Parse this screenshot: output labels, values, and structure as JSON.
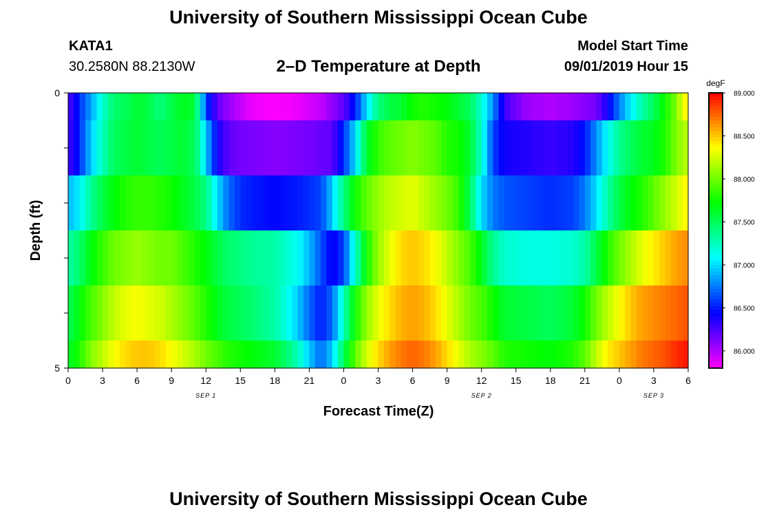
{
  "header": {
    "title": "University of Southern Mississippi Ocean Cube",
    "station_id": "KATA1",
    "station_coords": "30.2580N 88.2130W",
    "chart_title": "2–D Temperature at Depth",
    "model_label": "Model Start Time",
    "model_time": "09/01/2019 Hour 15"
  },
  "footer": {
    "title": "University of Southern Mississippi Ocean Cube"
  },
  "colors": {
    "background": "#ffffff",
    "text": "#000000",
    "scale_low": "#ff00ff",
    "scale_high": "#ff0000"
  },
  "chart_data": {
    "type": "heatmap",
    "title": "2–D Temperature at Depth",
    "xlabel": "Forecast Time(Z)",
    "ylabel": "Depth (ft)",
    "units": "degF",
    "x_range_hours": [
      0,
      54
    ],
    "x_tick_hours": [
      0,
      3,
      6,
      9,
      12,
      15,
      18,
      21,
      24,
      27,
      30,
      33,
      36,
      39,
      42,
      45,
      48,
      51,
      54
    ],
    "x_tick_labels": [
      "0",
      "3",
      "6",
      "9",
      "12",
      "15",
      "18",
      "21",
      "0",
      "3",
      "6",
      "9",
      "12",
      "15",
      "18",
      "21",
      "0",
      "3",
      "6"
    ],
    "date_labels": [
      {
        "hour": 12,
        "text": "SEP 1"
      },
      {
        "hour": 36,
        "text": "SEP 2"
      },
      {
        "hour": 51,
        "text": "SEP 3"
      }
    ],
    "y_range_ft": [
      0,
      5
    ],
    "y_tick_values": [
      0,
      1,
      2,
      3,
      4,
      5
    ],
    "y_tick_labels": [
      "0",
      "",
      "",
      "",
      "",
      "5"
    ],
    "colorbar": {
      "min": 85.8,
      "max": 89.0,
      "tick_values": [
        86.0,
        86.5,
        87.0,
        87.5,
        88.0,
        88.5,
        89.0
      ],
      "tick_labels": [
        "86.000",
        "86.500",
        "87.000",
        "87.500",
        "88.000",
        "88.500",
        "89.000"
      ]
    },
    "depth_layers": [
      {
        "depth": 0,
        "points": [
          [
            0,
            86.25
          ],
          [
            0.5,
            86.35
          ],
          [
            1,
            86.55
          ],
          [
            2,
            86.85
          ],
          [
            3,
            87.2
          ],
          [
            4,
            87.45
          ],
          [
            5,
            87.5
          ],
          [
            6,
            87.6
          ],
          [
            7,
            87.55
          ],
          [
            8,
            87.4
          ],
          [
            9,
            87.55
          ],
          [
            10,
            87.65
          ],
          [
            11,
            87.6
          ],
          [
            11.5,
            87.15
          ],
          [
            12,
            86.6
          ],
          [
            13,
            86.2
          ],
          [
            14,
            86.05
          ],
          [
            15,
            85.95
          ],
          [
            16,
            85.85
          ],
          [
            18,
            85.8
          ],
          [
            20,
            85.85
          ],
          [
            22,
            85.95
          ],
          [
            24,
            86.2
          ],
          [
            25,
            86.5
          ],
          [
            26,
            87.0
          ],
          [
            27,
            87.4
          ],
          [
            28,
            87.55
          ],
          [
            29,
            87.6
          ],
          [
            30,
            87.75
          ],
          [
            31,
            87.8
          ],
          [
            32,
            87.75
          ],
          [
            33,
            87.7
          ],
          [
            34,
            87.6
          ],
          [
            35,
            87.5
          ],
          [
            36,
            87.2
          ],
          [
            37,
            86.8
          ],
          [
            38,
            86.3
          ],
          [
            39,
            86.15
          ],
          [
            40,
            86.05
          ],
          [
            42,
            86.0
          ],
          [
            44,
            86.05
          ],
          [
            46,
            86.15
          ],
          [
            47,
            86.4
          ],
          [
            48,
            86.75
          ],
          [
            49,
            87.05
          ],
          [
            50,
            87.3
          ],
          [
            51,
            87.5
          ],
          [
            52,
            87.75
          ],
          [
            53,
            88.05
          ],
          [
            53.5,
            88.3
          ],
          [
            54,
            88.4
          ]
        ]
      },
      {
        "depth": 1,
        "points": [
          [
            0,
            86.3
          ],
          [
            0.5,
            86.35
          ],
          [
            1,
            86.55
          ],
          [
            2,
            86.95
          ],
          [
            3,
            87.25
          ],
          [
            4,
            87.5
          ],
          [
            5,
            87.55
          ],
          [
            6,
            87.6
          ],
          [
            7,
            87.55
          ],
          [
            8,
            87.5
          ],
          [
            9,
            87.55
          ],
          [
            10,
            87.6
          ],
          [
            11,
            87.5
          ],
          [
            11.5,
            87.3
          ],
          [
            12,
            86.95
          ],
          [
            13,
            86.4
          ],
          [
            14,
            86.2
          ],
          [
            15,
            86.15
          ],
          [
            18,
            86.1
          ],
          [
            21,
            86.15
          ],
          [
            23,
            86.2
          ],
          [
            24,
            86.55
          ],
          [
            25,
            87.0
          ],
          [
            26,
            87.6
          ],
          [
            27,
            87.85
          ],
          [
            28,
            87.95
          ],
          [
            29,
            88.0
          ],
          [
            30,
            88.05
          ],
          [
            31,
            88.0
          ],
          [
            32,
            87.95
          ],
          [
            33,
            87.8
          ],
          [
            34,
            87.75
          ],
          [
            35,
            87.6
          ],
          [
            36,
            87.2
          ],
          [
            37,
            86.6
          ],
          [
            38,
            86.4
          ],
          [
            40,
            86.35
          ],
          [
            42,
            86.3
          ],
          [
            44,
            86.35
          ],
          [
            45,
            86.5
          ],
          [
            46,
            86.8
          ],
          [
            47,
            87.1
          ],
          [
            48,
            87.35
          ],
          [
            49,
            87.5
          ],
          [
            50,
            87.6
          ],
          [
            51,
            87.65
          ],
          [
            52,
            87.8
          ],
          [
            53,
            88.05
          ],
          [
            54,
            88.2
          ]
        ]
      },
      {
        "depth": 2,
        "points": [
          [
            0,
            86.9
          ],
          [
            1,
            87.05
          ],
          [
            2,
            87.35
          ],
          [
            3,
            87.55
          ],
          [
            4,
            87.7
          ],
          [
            5,
            87.8
          ],
          [
            6,
            87.85
          ],
          [
            7,
            87.85
          ],
          [
            8,
            87.8
          ],
          [
            9,
            87.75
          ],
          [
            10,
            87.65
          ],
          [
            11,
            87.55
          ],
          [
            12,
            87.4
          ],
          [
            13,
            87.0
          ],
          [
            14,
            86.7
          ],
          [
            15,
            86.55
          ],
          [
            16,
            86.5
          ],
          [
            18,
            86.45
          ],
          [
            20,
            86.5
          ],
          [
            21,
            86.55
          ],
          [
            22,
            86.6
          ],
          [
            23,
            86.95
          ],
          [
            24,
            87.4
          ],
          [
            25,
            87.75
          ],
          [
            26,
            87.95
          ],
          [
            27,
            88.1
          ],
          [
            28,
            88.2
          ],
          [
            29,
            88.25
          ],
          [
            30,
            88.3
          ],
          [
            31,
            88.2
          ],
          [
            32,
            88.1
          ],
          [
            33,
            88.0
          ],
          [
            34,
            87.85
          ],
          [
            35,
            87.5
          ],
          [
            36,
            87.0
          ],
          [
            37,
            86.75
          ],
          [
            38,
            86.65
          ],
          [
            40,
            86.6
          ],
          [
            42,
            86.55
          ],
          [
            44,
            86.6
          ],
          [
            45,
            86.75
          ],
          [
            46,
            87.0
          ],
          [
            47,
            87.3
          ],
          [
            48,
            87.55
          ],
          [
            49,
            87.7
          ],
          [
            50,
            87.8
          ],
          [
            51,
            87.95
          ],
          [
            52,
            88.1
          ],
          [
            53,
            88.25
          ],
          [
            54,
            88.4
          ]
        ]
      },
      {
        "depth": 3,
        "points": [
          [
            0,
            87.3
          ],
          [
            1,
            87.45
          ],
          [
            2,
            87.7
          ],
          [
            3,
            87.85
          ],
          [
            4,
            88.0
          ],
          [
            5,
            88.05
          ],
          [
            6,
            88.1
          ],
          [
            7,
            88.05
          ],
          [
            8,
            88.0
          ],
          [
            9,
            88.0
          ],
          [
            10,
            87.9
          ],
          [
            11,
            87.8
          ],
          [
            12,
            87.7
          ],
          [
            13,
            87.55
          ],
          [
            14,
            87.45
          ],
          [
            15,
            87.4
          ],
          [
            16,
            87.35
          ],
          [
            18,
            87.3
          ],
          [
            20,
            87.1
          ],
          [
            21,
            86.9
          ],
          [
            22,
            86.65
          ],
          [
            23,
            86.4
          ],
          [
            24,
            86.6
          ],
          [
            25,
            87.2
          ],
          [
            26,
            87.75
          ],
          [
            27,
            88.1
          ],
          [
            28,
            88.3
          ],
          [
            29,
            88.45
          ],
          [
            30,
            88.5
          ],
          [
            31,
            88.45
          ],
          [
            32,
            88.35
          ],
          [
            33,
            88.2
          ],
          [
            34,
            88.05
          ],
          [
            35,
            87.9
          ],
          [
            36,
            87.65
          ],
          [
            37,
            87.35
          ],
          [
            38,
            87.2
          ],
          [
            40,
            87.15
          ],
          [
            42,
            87.15
          ],
          [
            44,
            87.2
          ],
          [
            45,
            87.3
          ],
          [
            46,
            87.55
          ],
          [
            47,
            87.8
          ],
          [
            48,
            88.0
          ],
          [
            49,
            88.15
          ],
          [
            50,
            88.3
          ],
          [
            51,
            88.4
          ],
          [
            52,
            88.5
          ],
          [
            53,
            88.6
          ],
          [
            54,
            88.65
          ]
        ]
      },
      {
        "depth": 4,
        "points": [
          [
            0,
            87.5
          ],
          [
            1,
            87.7
          ],
          [
            2,
            87.9
          ],
          [
            3,
            88.05
          ],
          [
            4,
            88.2
          ],
          [
            5,
            88.3
          ],
          [
            6,
            88.35
          ],
          [
            7,
            88.3
          ],
          [
            8,
            88.25
          ],
          [
            9,
            88.15
          ],
          [
            10,
            88.05
          ],
          [
            11,
            87.95
          ],
          [
            12,
            87.8
          ],
          [
            13,
            87.65
          ],
          [
            14,
            87.55
          ],
          [
            15,
            87.5
          ],
          [
            16,
            87.45
          ],
          [
            18,
            87.3
          ],
          [
            19,
            87.15
          ],
          [
            20,
            86.95
          ],
          [
            21,
            86.7
          ],
          [
            22,
            86.5
          ],
          [
            23,
            86.7
          ],
          [
            24,
            87.25
          ],
          [
            25,
            87.75
          ],
          [
            26,
            88.1
          ],
          [
            27,
            88.3
          ],
          [
            28,
            88.45
          ],
          [
            29,
            88.55
          ],
          [
            30,
            88.6
          ],
          [
            31,
            88.55
          ],
          [
            32,
            88.45
          ],
          [
            33,
            88.3
          ],
          [
            34,
            88.15
          ],
          [
            35,
            88.0
          ],
          [
            36,
            87.9
          ],
          [
            37,
            87.75
          ],
          [
            38,
            87.6
          ],
          [
            40,
            87.55
          ],
          [
            42,
            87.5
          ],
          [
            44,
            87.6
          ],
          [
            45,
            87.75
          ],
          [
            46,
            88.0
          ],
          [
            47,
            88.2
          ],
          [
            48,
            88.35
          ],
          [
            49,
            88.5
          ],
          [
            50,
            88.6
          ],
          [
            51,
            88.65
          ],
          [
            52,
            88.7
          ],
          [
            53,
            88.75
          ],
          [
            54,
            88.8
          ]
        ]
      },
      {
        "depth": 5,
        "points": [
          [
            0,
            87.6
          ],
          [
            1,
            87.8
          ],
          [
            2,
            88.05
          ],
          [
            3,
            88.2
          ],
          [
            4,
            88.35
          ],
          [
            5,
            88.45
          ],
          [
            6,
            88.5
          ],
          [
            7,
            88.5
          ],
          [
            8,
            88.45
          ],
          [
            9,
            88.35
          ],
          [
            10,
            88.25
          ],
          [
            11,
            88.15
          ],
          [
            12,
            88.0
          ],
          [
            13,
            87.9
          ],
          [
            14,
            87.8
          ],
          [
            15,
            87.75
          ],
          [
            16,
            87.7
          ],
          [
            18,
            87.6
          ],
          [
            19,
            87.45
          ],
          [
            20,
            87.25
          ],
          [
            21,
            86.95
          ],
          [
            22,
            86.7
          ],
          [
            23,
            86.95
          ],
          [
            24,
            87.5
          ],
          [
            25,
            87.95
          ],
          [
            26,
            88.25
          ],
          [
            27,
            88.45
          ],
          [
            28,
            88.6
          ],
          [
            29,
            88.7
          ],
          [
            30,
            88.75
          ],
          [
            31,
            88.7
          ],
          [
            32,
            88.6
          ],
          [
            33,
            88.45
          ],
          [
            34,
            88.3
          ],
          [
            35,
            88.15
          ],
          [
            36,
            88.05
          ],
          [
            37,
            87.95
          ],
          [
            38,
            87.8
          ],
          [
            40,
            87.75
          ],
          [
            42,
            87.7
          ],
          [
            44,
            87.8
          ],
          [
            45,
            87.95
          ],
          [
            46,
            88.2
          ],
          [
            47,
            88.4
          ],
          [
            48,
            88.5
          ],
          [
            49,
            88.6
          ],
          [
            50,
            88.7
          ],
          [
            51,
            88.75
          ],
          [
            52,
            88.8
          ],
          [
            53,
            88.9
          ],
          [
            54,
            88.95
          ]
        ]
      }
    ]
  }
}
